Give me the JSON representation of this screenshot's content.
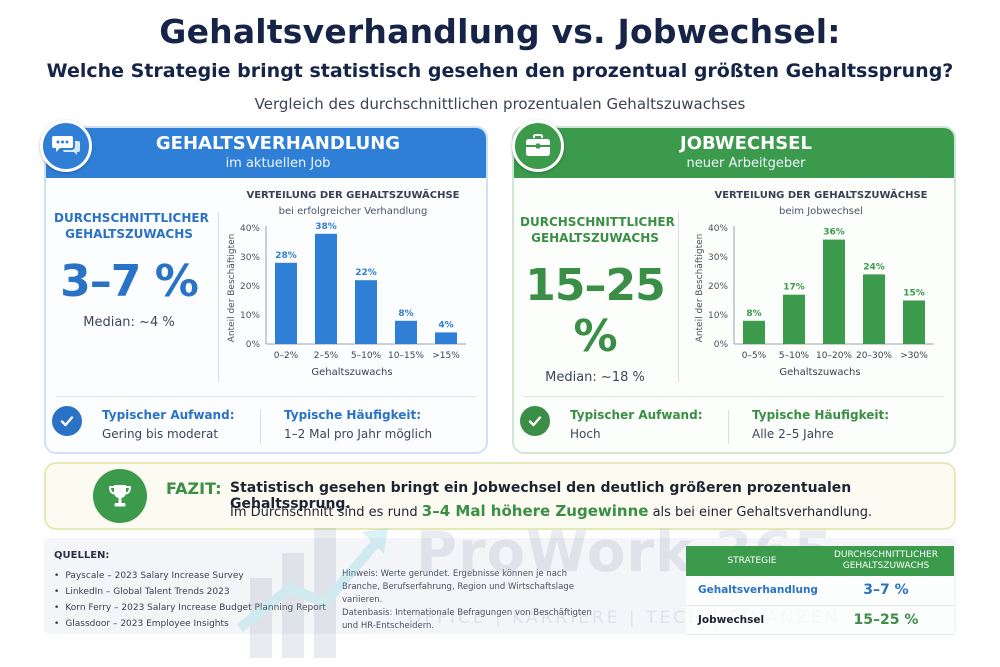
{
  "title": "Gehaltsverhandlung vs. Jobwechsel:",
  "subtitle": "Welche Strategie bringt statistisch gesehen den prozentual größten Gehaltssprung?",
  "tagline": "Vergleich des durchschnittlichen prozentualen Gehaltszuwachses",
  "colors": {
    "blue": "#2f7fd6",
    "green": "#3b9a4b"
  },
  "left": {
    "header_title": "GEHALTSVERHANDLUNG",
    "header_sub": "im aktuellen Job",
    "icon": "chat-bubbles-icon",
    "stat_label": "DURCHSCHNITTLICHER GEHALTSZUWACHS",
    "stat_value": "3–7 %",
    "median": "Median: ~4 %",
    "effort_label": "Typischer Aufwand:",
    "effort_value": "Gering bis moderat",
    "freq_label": "Typische Häufigkeit:",
    "freq_value": "1–2 Mal pro Jahr möglich"
  },
  "right": {
    "header_title": "JOBWECHSEL",
    "header_sub": "neuer Arbeitgeber",
    "icon": "briefcase-icon",
    "stat_label": "DURCHSCHNITTLICHER GEHALTSZUWACHS",
    "stat_value": "15–25 %",
    "median": "Median: ~18 %",
    "effort_label": "Typischer Aufwand:",
    "effort_value": "Hoch",
    "freq_label": "Typische Häufigkeit:",
    "freq_value": "Alle 2–5 Jahre"
  },
  "chart_data": [
    {
      "type": "bar",
      "title": "VERTEILUNG DER GEHALTSZUWÄCHSE",
      "subtitle": "bei erfolgreicher Verhandlung",
      "xlabel": "Gehaltszuwachs",
      "ylabel": "Anteil der Beschäftigten",
      "categories": [
        "0–2%",
        "2–5%",
        "5–10%",
        "10–15%",
        ">15%"
      ],
      "values": [
        28,
        38,
        22,
        8,
        4
      ],
      "value_labels": [
        "28%",
        "38%",
        "22%",
        "8%",
        "4%"
      ],
      "yticks": [
        "0%",
        "10%",
        "20%",
        "30%",
        "40%"
      ],
      "ylim": [
        0,
        40
      ],
      "color": "#2f7fd6"
    },
    {
      "type": "bar",
      "title": "VERTEILUNG DER GEHALTSZUWÄCHSE",
      "subtitle": "beim Jobwechsel",
      "xlabel": "Gehaltszuwachs",
      "ylabel": "Anteil der Beschäftigten",
      "categories": [
        "0–5%",
        "5–10%",
        "10–20%",
        "20–30%",
        ">30%"
      ],
      "values": [
        8,
        17,
        36,
        24,
        15
      ],
      "value_labels": [
        "8%",
        "17%",
        "36%",
        "24%",
        "15%"
      ],
      "yticks": [
        "0%",
        "10%",
        "20%",
        "30%",
        "40%"
      ],
      "ylim": [
        0,
        40
      ],
      "color": "#3b9a4b"
    }
  ],
  "fazit": {
    "label": "FAZIT:",
    "line1": "Statistisch gesehen bringt ein Jobwechsel den deutlich größeren prozentualen Gehaltssprung.",
    "line2_pre": "Im Durchschnitt sind es rund",
    "line2_highlight": "3–4 Mal höhere Zugewinne",
    "line2_post": "als bei einer Gehaltsverhandlung."
  },
  "sources": {
    "heading": "QUELLEN:",
    "items": [
      "Payscale – 2023 Salary Increase Survey",
      "LinkedIn – Global Talent Trends 2023",
      "Korn Ferry – 2023 Salary Increase Budget Planning Report",
      "Glassdoor – 2023 Employee Insights"
    ],
    "note1": "Hinweis: Werte gerundet. Ergebnisse können je nach Branche, Berufserfahrung, Region und Wirtschaftslage variieren.",
    "note2": "Datenbasis: Internationale Befragungen von Beschäftigten und HR-Entscheidern."
  },
  "watermark": {
    "brand": "ProWork 365",
    "tagline": "OFFICE | KARRIERE | TECH | FINANZEN"
  },
  "table": {
    "head_strategy": "STRATEGIE",
    "head_value": "DURCHSCHNITTLICHER GEHALTSZUWACHS",
    "rows": [
      {
        "strategy": "Gehaltsverhandlung",
        "value": "3–7 %"
      },
      {
        "strategy": "Jobwechsel",
        "value": "15–25 %"
      }
    ]
  }
}
